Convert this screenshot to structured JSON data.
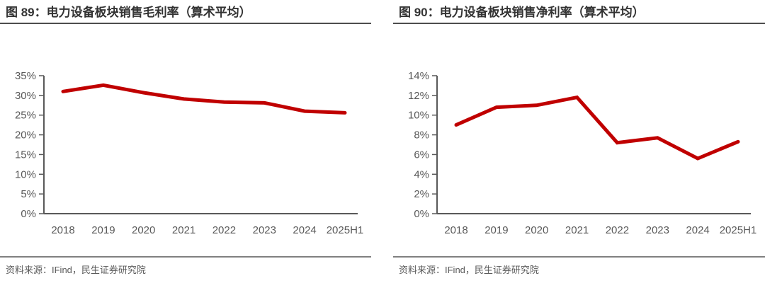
{
  "colors": {
    "line": "#C00000",
    "axis": "#595959",
    "tick_label": "#595959",
    "title": "#333333",
    "title_underline": "#4d4d4d",
    "source_divider": "#808080",
    "source_text": "#595959",
    "background": "#ffffff"
  },
  "source_note": "资料来源：IFind，民生证券研究院",
  "chart_data": [
    {
      "type": "line",
      "title": "图 89：电力设备板块销售毛利率（算术平均）",
      "categories": [
        "2018",
        "2019",
        "2020",
        "2021",
        "2022",
        "2023",
        "2024",
        "2025H1"
      ],
      "values": [
        31.0,
        32.6,
        30.7,
        29.1,
        28.3,
        28.1,
        26.0,
        25.6
      ],
      "ylim": [
        0,
        35
      ],
      "ytick_step": 5,
      "tick_suffix": "%",
      "xlabel": "",
      "ylabel": "",
      "grid": false,
      "legend_position": "none",
      "line_color": "#C00000"
    },
    {
      "type": "line",
      "title": "图 90：电力设备板块销售净利率（算术平均）",
      "categories": [
        "2018",
        "2019",
        "2020",
        "2021",
        "2022",
        "2023",
        "2024",
        "2025H1"
      ],
      "values": [
        9.0,
        10.8,
        11.0,
        11.8,
        7.2,
        7.7,
        5.6,
        7.3
      ],
      "ylim": [
        0,
        14
      ],
      "ytick_step": 2,
      "tick_suffix": "%",
      "xlabel": "",
      "ylabel": "",
      "grid": false,
      "legend_position": "none",
      "line_color": "#C00000"
    }
  ]
}
